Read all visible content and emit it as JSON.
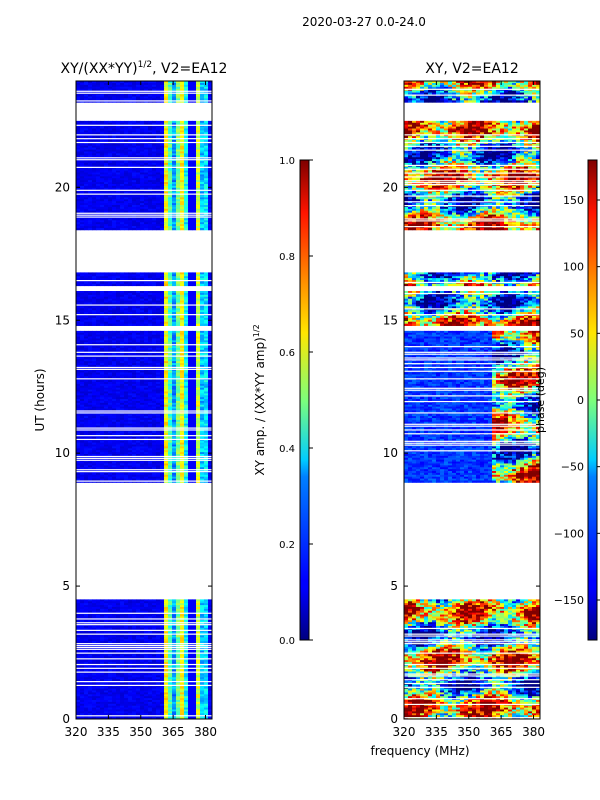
{
  "figure_title": "2020-03-27 0.0-24.0",
  "shared_xlabel": "frequency (MHz)",
  "chart_data": [
    {
      "type": "heatmap",
      "title": "XY/(XX*YY)",
      "title_exponent": "1/2",
      "title_suffix": ", V2=EA12",
      "xlabel": "frequency (MHz)",
      "ylabel": "UT (hours)",
      "xlim": [
        320,
        383
      ],
      "ylim": [
        0,
        24
      ],
      "xticks": [
        320,
        335,
        350,
        365,
        380
      ],
      "yticks": [
        0,
        5,
        10,
        15,
        20
      ],
      "data_segments_ut": [
        [
          0.0,
          4.5
        ],
        [
          8.9,
          14.6
        ],
        [
          14.8,
          16.1
        ],
        [
          16.3,
          16.8
        ],
        [
          18.4,
          22.5
        ],
        [
          23.2,
          24.0
        ]
      ],
      "colorbar": {
        "label": "XY amp. / (XX*YY amp)",
        "label_exponent": "1/2",
        "range": [
          0.0,
          1.0
        ],
        "ticks": [
          0.0,
          0.2,
          0.4,
          0.6,
          0.8,
          1.0
        ],
        "tick_labels": [
          "0.0",
          "0.2",
          "0.4",
          "0.6",
          "0.8",
          "1.0"
        ]
      }
    },
    {
      "type": "heatmap",
      "title": "XY, V2=EA12",
      "xlabel": "frequency (MHz)",
      "ylabel": "",
      "xlim": [
        320,
        383
      ],
      "ylim": [
        0,
        24
      ],
      "xticks": [
        320,
        335,
        350,
        365,
        380
      ],
      "yticks": [
        0,
        5,
        10,
        15,
        20
      ],
      "data_segments_ut": [
        [
          0.0,
          4.5
        ],
        [
          8.9,
          14.6
        ],
        [
          14.8,
          16.1
        ],
        [
          16.3,
          16.8
        ],
        [
          18.4,
          22.5
        ],
        [
          23.2,
          24.0
        ]
      ],
      "colorbar": {
        "label": "phase (deg)",
        "range": [
          -180,
          180
        ],
        "ticks": [
          -150,
          -100,
          -50,
          0,
          50,
          100,
          150
        ],
        "tick_labels": [
          "−150",
          "−100",
          "−50",
          "0",
          "50",
          "100",
          "150"
        ]
      }
    }
  ]
}
